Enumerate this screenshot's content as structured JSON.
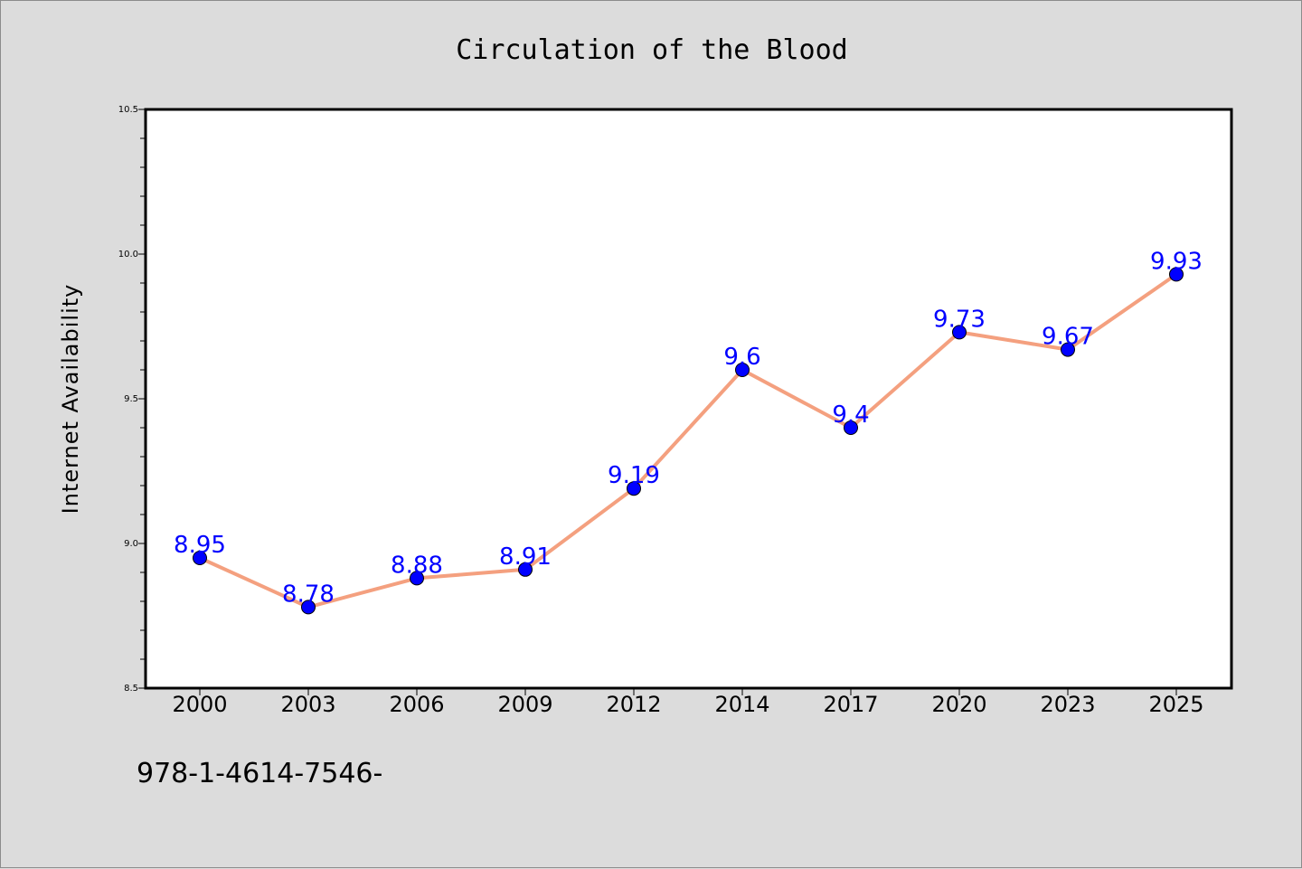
{
  "colors": {
    "background": "#dcdcdc",
    "plot_background": "#ffffff",
    "line": "#f4a07f",
    "marker": "#0000ff",
    "data_label": "#0000ff"
  },
  "chart_data": {
    "type": "line",
    "title": "Circulation of the Blood",
    "xlabel": "",
    "ylabel": "Internet Availability",
    "categories": [
      "2000",
      "2003",
      "2006",
      "2009",
      "2012",
      "2014",
      "2017",
      "2020",
      "2023",
      "2025"
    ],
    "series": [
      {
        "values": [
          8.95,
          8.78,
          8.88,
          8.91,
          9.19,
          9.6,
          9.4,
          9.73,
          9.67,
          9.93
        ],
        "labels": [
          "8.95",
          "8.78",
          "8.88",
          "8.91",
          "9.19",
          "9.6",
          "9.4",
          "9.73",
          "9.67",
          "9.93"
        ]
      }
    ],
    "ylim": [
      8.5,
      10.5
    ],
    "yticks": [
      "8.5",
      "9.0",
      "9.5",
      "10.0",
      "10.5"
    ],
    "yminor_step": 0.1,
    "grid": false,
    "legend": "none"
  },
  "footer": {
    "text": "978-1-4614-7546-"
  }
}
